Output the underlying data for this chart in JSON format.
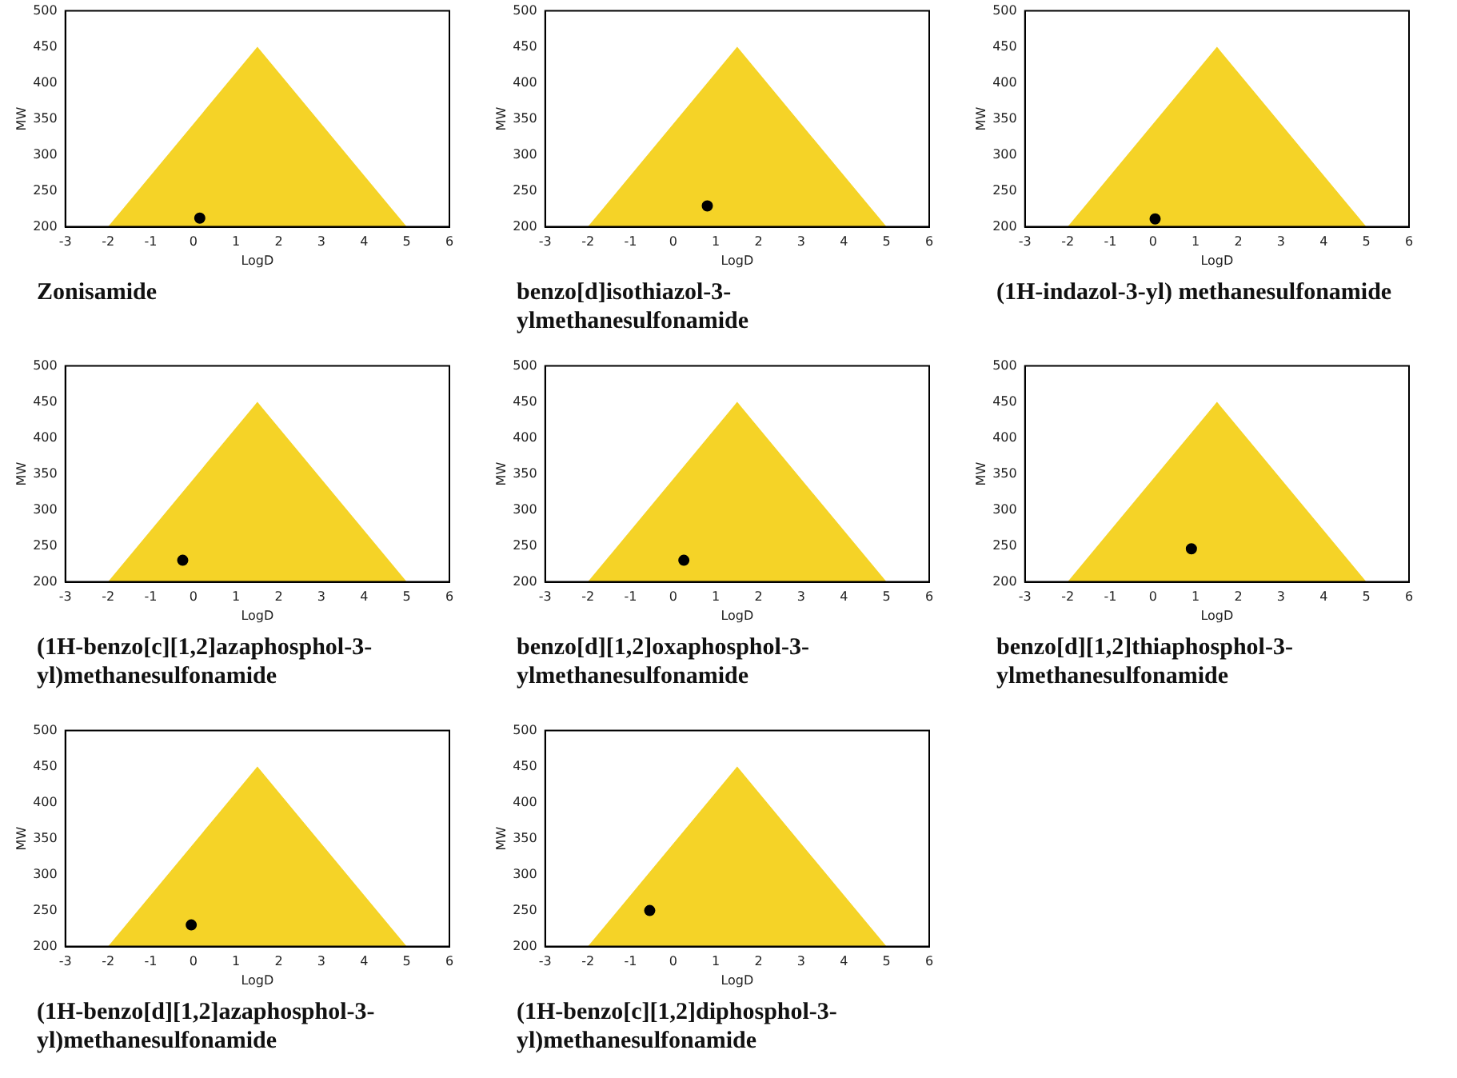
{
  "chart_data": [
    {
      "type": "scatter",
      "title": "Zonisamide",
      "xlabel": "LogD",
      "ylabel": "MW",
      "xlim": [
        -3,
        6
      ],
      "xticks": [
        -3,
        -2,
        -1,
        0,
        1,
        2,
        3,
        4,
        5,
        6
      ],
      "ylim": [
        200,
        500
      ],
      "yticks": [
        200,
        250,
        300,
        350,
        400,
        450,
        500
      ],
      "series": [
        {
          "type": "area",
          "color": "#f5d327",
          "x": [
            -2,
            1.5,
            5
          ],
          "values": [
            200,
            450,
            200
          ]
        },
        {
          "type": "scatter",
          "marker": "circle",
          "color": "#000000",
          "x": [
            0.15
          ],
          "values": [
            212
          ]
        }
      ]
    },
    {
      "type": "scatter",
      "title": "benzo[d]isothiazol-3-ylmethanesulfonamide",
      "xlabel": "LogD",
      "ylabel": "MW",
      "xlim": [
        -3,
        6
      ],
      "xticks": [
        -3,
        -2,
        -1,
        0,
        1,
        2,
        3,
        4,
        5,
        6
      ],
      "ylim": [
        200,
        500
      ],
      "yticks": [
        200,
        250,
        300,
        350,
        400,
        450,
        500
      ],
      "series": [
        {
          "type": "area",
          "color": "#f5d327",
          "x": [
            -2,
            1.5,
            5
          ],
          "values": [
            200,
            450,
            200
          ]
        },
        {
          "type": "scatter",
          "marker": "circle",
          "color": "#000000",
          "x": [
            0.8
          ],
          "values": [
            229
          ]
        }
      ]
    },
    {
      "type": "scatter",
      "title": "(1H-indazol-3-yl) methanesulfonamide",
      "xlabel": "LogD",
      "ylabel": "MW",
      "xlim": [
        -3,
        6
      ],
      "xticks": [
        -3,
        -2,
        -1,
        0,
        1,
        2,
        3,
        4,
        5,
        6
      ],
      "ylim": [
        200,
        500
      ],
      "yticks": [
        200,
        250,
        300,
        350,
        400,
        450,
        500
      ],
      "series": [
        {
          "type": "area",
          "color": "#f5d327",
          "x": [
            -2,
            1.5,
            5
          ],
          "values": [
            200,
            450,
            200
          ]
        },
        {
          "type": "scatter",
          "marker": "circle",
          "color": "#000000",
          "x": [
            0.05
          ],
          "values": [
            211
          ]
        }
      ]
    },
    {
      "type": "scatter",
      "title": "(1H-benzo[c][1,2]azaphosphol-3-yl)methanesulfonamide",
      "xlabel": "LogD",
      "ylabel": "MW",
      "xlim": [
        -3,
        6
      ],
      "xticks": [
        -3,
        -2,
        -1,
        0,
        1,
        2,
        3,
        4,
        5,
        6
      ],
      "ylim": [
        200,
        500
      ],
      "yticks": [
        200,
        250,
        300,
        350,
        400,
        450,
        500
      ],
      "series": [
        {
          "type": "area",
          "color": "#f5d327",
          "x": [
            -2,
            1.5,
            5
          ],
          "values": [
            200,
            450,
            200
          ]
        },
        {
          "type": "scatter",
          "marker": "circle",
          "color": "#000000",
          "x": [
            -0.25
          ],
          "values": [
            230
          ]
        }
      ]
    },
    {
      "type": "scatter",
      "title": "benzo[d][1,2]oxaphosphol-3-ylmethanesulfonamide",
      "xlabel": "LogD",
      "ylabel": "MW",
      "xlim": [
        -3,
        6
      ],
      "xticks": [
        -3,
        -2,
        -1,
        0,
        1,
        2,
        3,
        4,
        5,
        6
      ],
      "ylim": [
        200,
        500
      ],
      "yticks": [
        200,
        250,
        300,
        350,
        400,
        450,
        500
      ],
      "series": [
        {
          "type": "area",
          "color": "#f5d327",
          "x": [
            -2,
            1.5,
            5
          ],
          "values": [
            200,
            450,
            200
          ]
        },
        {
          "type": "scatter",
          "marker": "circle",
          "color": "#000000",
          "x": [
            0.25
          ],
          "values": [
            230
          ]
        }
      ]
    },
    {
      "type": "scatter",
      "title": "benzo[d][1,2]thiaphosphol-3-ylmethanesulfonamide",
      "xlabel": "LogD",
      "ylabel": "MW",
      "xlim": [
        -3,
        6
      ],
      "xticks": [
        -3,
        -2,
        -1,
        0,
        1,
        2,
        3,
        4,
        5,
        6
      ],
      "ylim": [
        200,
        500
      ],
      "yticks": [
        200,
        250,
        300,
        350,
        400,
        450,
        500
      ],
      "series": [
        {
          "type": "area",
          "color": "#f5d327",
          "x": [
            -2,
            1.5,
            5
          ],
          "values": [
            200,
            450,
            200
          ]
        },
        {
          "type": "scatter",
          "marker": "circle",
          "color": "#000000",
          "x": [
            0.9
          ],
          "values": [
            246
          ]
        }
      ]
    },
    {
      "type": "scatter",
      "title": "(1H-benzo[d][1,2]azaphosphol-3-yl)methanesulfonamide",
      "xlabel": "LogD",
      "ylabel": "MW",
      "xlim": [
        -3,
        6
      ],
      "xticks": [
        -3,
        -2,
        -1,
        0,
        1,
        2,
        3,
        4,
        5,
        6
      ],
      "ylim": [
        200,
        500
      ],
      "yticks": [
        200,
        250,
        300,
        350,
        400,
        450,
        500
      ],
      "series": [
        {
          "type": "area",
          "color": "#f5d327",
          "x": [
            -2,
            1.5,
            5
          ],
          "values": [
            200,
            450,
            200
          ]
        },
        {
          "type": "scatter",
          "marker": "circle",
          "color": "#000000",
          "x": [
            -0.05
          ],
          "values": [
            230
          ]
        }
      ]
    },
    {
      "type": "scatter",
      "title": "(1H-benzo[c][1,2]diphosphol-3-yl)methanesulfonamide",
      "xlabel": "LogD",
      "ylabel": "MW",
      "xlim": [
        -3,
        6
      ],
      "xticks": [
        -3,
        -2,
        -1,
        0,
        1,
        2,
        3,
        4,
        5,
        6
      ],
      "ylim": [
        200,
        500
      ],
      "yticks": [
        200,
        250,
        300,
        350,
        400,
        450,
        500
      ],
      "series": [
        {
          "type": "area",
          "color": "#f5d327",
          "x": [
            -2,
            1.5,
            5
          ],
          "values": [
            200,
            450,
            200
          ]
        },
        {
          "type": "scatter",
          "marker": "circle",
          "color": "#000000",
          "x": [
            -0.55
          ],
          "values": [
            250
          ]
        }
      ]
    }
  ]
}
